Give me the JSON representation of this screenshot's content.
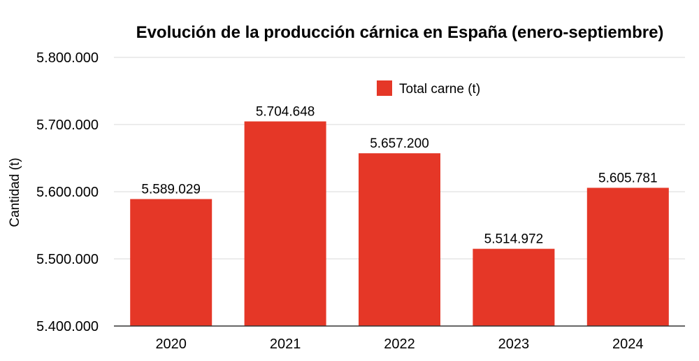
{
  "chart_data": {
    "type": "bar",
    "title": "Evolución de la producción cárnica en España (enero-septiembre)",
    "xlabel": "",
    "ylabel": "Cantidad (t)",
    "categories": [
      "2020",
      "2021",
      "2022",
      "2023",
      "2024"
    ],
    "series": [
      {
        "name": "Total carne (t)",
        "values": [
          5589029,
          5704648,
          5657200,
          5514972,
          5605781
        ],
        "value_labels": [
          "5.589.029",
          "5.704.648",
          "5.657.200",
          "5.514.972",
          "5.605.781"
        ],
        "color": "#e53727"
      }
    ],
    "ylim": [
      5400000,
      5800000
    ],
    "yticks": [
      5400000,
      5500000,
      5600000,
      5700000,
      5800000
    ],
    "ytick_labels": [
      "5.400.000",
      "5.500.000",
      "5.600.000",
      "5.700.000",
      "5.800.000"
    ],
    "grid": true,
    "legend_position": "top-right"
  }
}
